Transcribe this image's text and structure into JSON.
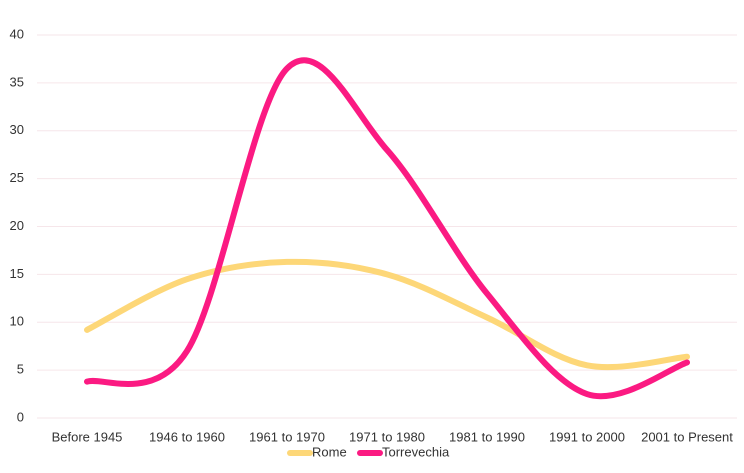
{
  "chart_data": {
    "type": "line",
    "categories": [
      "Before 1945",
      "1946 to 1960",
      "1961 to 1970",
      "1971 to 1980",
      "1981 to 1990",
      "1991 to 2000",
      "2001 to Present"
    ],
    "series": [
      {
        "name": "Rome",
        "color": "#fdd778",
        "values": [
          9.2,
          14.5,
          16.3,
          15,
          10.5,
          5.5,
          6.4
        ]
      },
      {
        "name": "Torrevechia",
        "color": "#fb1a82",
        "values": [
          3.8,
          7,
          36.5,
          28,
          13,
          2.5,
          5.8
        ]
      }
    ],
    "ylim": [
      0,
      40
    ],
    "yticks": [
      0,
      5,
      10,
      15,
      20,
      25,
      30,
      35,
      40
    ],
    "grid": true,
    "legend": "bottom"
  }
}
